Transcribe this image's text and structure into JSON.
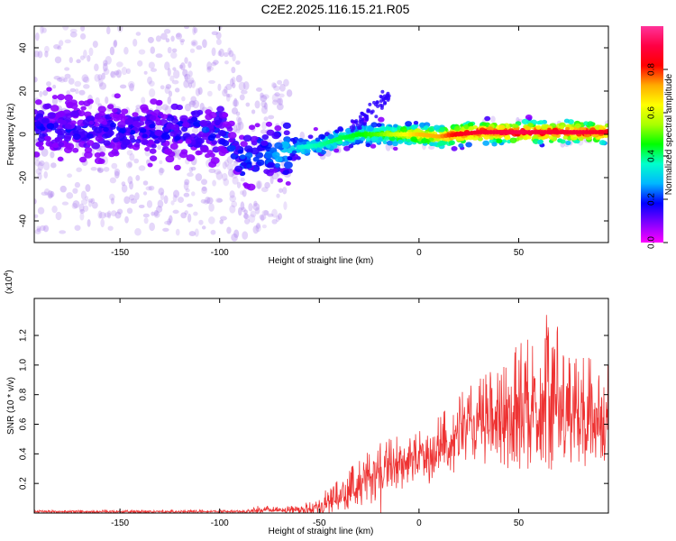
{
  "title": "C2E2.2025.116.15.21.R05",
  "chart_data": [
    {
      "type": "heatmap",
      "xlabel": "Height of straight line (km)",
      "ylabel": "Frequency (Hz)",
      "xlim": [
        -193,
        95
      ],
      "ylim": [
        -50,
        50
      ],
      "xticks": [
        -150,
        -100,
        -50,
        0,
        50
      ],
      "xtick_labels": [
        "-150",
        "-100",
        "",
        "0",
        "50"
      ],
      "yticks": [
        -40,
        -20,
        0,
        20,
        40
      ],
      "ytick_labels": [
        "-40",
        "-20",
        "0",
        "20",
        "40"
      ],
      "grid": false,
      "colorbar": {
        "label": "Normalized spectral amplitude",
        "range": [
          0,
          1
        ],
        "ticks": [
          0.0,
          0.2,
          0.4,
          0.6,
          0.8
        ],
        "tick_labels": [
          "0.0",
          "0.2",
          "0.4",
          "0.6",
          "0.8"
        ],
        "colormap": [
          "#ff00ff",
          "#7f00ff",
          "#0000ff",
          "#00b7ff",
          "#00ffcc",
          "#00ff00",
          "#aaff00",
          "#ffff00",
          "#ffaa00",
          "#ff0000",
          "#ff0044",
          "#ff3399"
        ]
      },
      "ridge": {
        "x": [
          -193,
          -150,
          -100,
          -92,
          -88,
          -80,
          -70,
          -60,
          -50,
          -40,
          -30,
          -20,
          -10,
          0,
          10,
          20,
          30,
          40,
          50,
          60,
          70,
          80,
          95
        ],
        "freq_hz": [
          3,
          2,
          2,
          -8,
          -13,
          -9,
          -8,
          -6,
          -5,
          -2,
          0,
          0,
          0,
          0,
          -1,
          0,
          1,
          1,
          1,
          1,
          1,
          1,
          1
        ],
        "amplitude": [
          0.15,
          0.15,
          0.17,
          0.17,
          0.2,
          0.22,
          0.28,
          0.35,
          0.38,
          0.42,
          0.45,
          0.5,
          0.6,
          0.7,
          0.72,
          0.85,
          0.88,
          0.9,
          0.92,
          0.9,
          0.88,
          0.9,
          0.85
        ]
      }
    },
    {
      "type": "line",
      "xlabel": "Height of straight line (km)",
      "ylabel": "SNR (10 * v/v)",
      "y_multiplier": "(x10^4)",
      "xlim": [
        -193,
        95
      ],
      "ylim": [
        0,
        1.45
      ],
      "xticks": [
        -150,
        -100,
        -50,
        0,
        50
      ],
      "xtick_labels": [
        "-150",
        "-100",
        "-50",
        "0",
        "50"
      ],
      "yticks": [
        0.2,
        0.4,
        0.6,
        0.8,
        1.0,
        1.2
      ],
      "ytick_labels": [
        "0.2",
        "0.4",
        "0.6",
        "0.8",
        "1.0",
        "1.2"
      ],
      "grid": false,
      "series": [
        {
          "color": "#ee3333",
          "envelope_x": [
            -193,
            -150,
            -100,
            -90,
            -80,
            -70,
            -60,
            -50,
            -45,
            -40,
            -35,
            -30,
            -25,
            -20,
            -15,
            -10,
            -5,
            0,
            5,
            10,
            15,
            20,
            25,
            30,
            35,
            40,
            45,
            50,
            55,
            60,
            65,
            70,
            75,
            80,
            85,
            90,
            95
          ],
          "envelope_low": [
            0.0,
            0.0,
            0.0,
            0.0,
            0.0,
            0.0,
            0.0,
            0.0,
            0.0,
            0.0,
            0.0,
            0.0,
            0.0,
            0.0,
            0.0,
            0.15,
            0.2,
            0.25,
            0.2,
            0.2,
            0.25,
            0.3,
            0.3,
            0.3,
            0.35,
            0.35,
            0.3,
            0.3,
            0.3,
            0.25,
            0.25,
            0.35,
            0.3,
            0.35,
            0.3,
            0.25,
            0.3
          ],
          "envelope_high": [
            0.02,
            0.02,
            0.02,
            0.02,
            0.05,
            0.04,
            0.06,
            0.1,
            0.2,
            0.22,
            0.3,
            0.35,
            0.42,
            0.5,
            0.5,
            0.52,
            0.5,
            0.55,
            0.6,
            0.65,
            0.72,
            0.8,
            0.85,
            0.9,
            0.95,
            1.0,
            1.05,
            1.15,
            1.2,
            1.3,
            1.35,
            1.25,
            1.1,
            1.1,
            1.05,
            1.0,
            1.0
          ],
          "mean": [
            0.01,
            0.01,
            0.01,
            0.01,
            0.02,
            0.02,
            0.02,
            0.04,
            0.08,
            0.1,
            0.15,
            0.2,
            0.25,
            0.28,
            0.3,
            0.32,
            0.35,
            0.4,
            0.42,
            0.45,
            0.5,
            0.55,
            0.58,
            0.6,
            0.62,
            0.65,
            0.65,
            0.7,
            0.72,
            0.75,
            0.78,
            0.75,
            0.72,
            0.7,
            0.68,
            0.65,
            0.65
          ]
        }
      ]
    }
  ]
}
